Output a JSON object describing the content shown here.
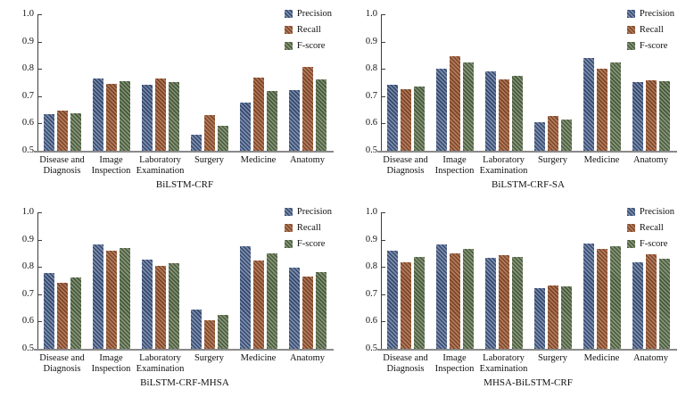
{
  "figure": {
    "background": "#ffffff",
    "text_color": "#111111",
    "axis_color": "#3d3d3d",
    "baseline_color": "#8a8a8a",
    "legend": {
      "position": "top-right",
      "items": [
        {
          "label": "Precision",
          "colors": [
            "#34496f",
            "#7c8cab"
          ]
        },
        {
          "label": "Recall",
          "colors": [
            "#7f4426",
            "#b07c5e"
          ]
        },
        {
          "label": "F-score",
          "colors": [
            "#455a3c",
            "#879377"
          ]
        }
      ]
    }
  },
  "chart_data": [
    {
      "type": "bar",
      "title": "BiLSTM-CRF",
      "categories": [
        "Disease and Diagnosis",
        "Image Inspection",
        "Laboratory Examination",
        "Surgery",
        "Medicine",
        "Anatomy"
      ],
      "series": [
        {
          "name": "Precision",
          "values": [
            0.635,
            0.766,
            0.741,
            0.558,
            0.676,
            0.722
          ]
        },
        {
          "name": "Recall",
          "values": [
            0.648,
            0.746,
            0.764,
            0.632,
            0.768,
            0.808
          ]
        },
        {
          "name": "F-score",
          "values": [
            0.638,
            0.756,
            0.752,
            0.592,
            0.72,
            0.763
          ]
        }
      ],
      "ylim": [
        0.5,
        1.0
      ],
      "yticks": [
        0.5,
        0.6,
        0.7,
        0.8,
        0.9,
        1.0
      ],
      "grid": false,
      "legend_position": "top-right"
    },
    {
      "type": "bar",
      "title": "BiLSTM-CRF-SA",
      "categories": [
        "Disease and Diagnosis",
        "Image Inspection",
        "Laboratory Examination",
        "Surgery",
        "Medicine",
        "Anatomy"
      ],
      "series": [
        {
          "name": "Precision",
          "values": [
            0.742,
            0.8,
            0.791,
            0.604,
            0.84,
            0.752
          ]
        },
        {
          "name": "Recall",
          "values": [
            0.726,
            0.845,
            0.761,
            0.627,
            0.802,
            0.758
          ]
        },
        {
          "name": "F-score",
          "values": [
            0.734,
            0.823,
            0.776,
            0.615,
            0.822,
            0.755
          ]
        }
      ],
      "ylim": [
        0.5,
        1.0
      ],
      "yticks": [
        0.5,
        0.6,
        0.7,
        0.8,
        0.9,
        1.0
      ],
      "grid": false,
      "legend_position": "top-right"
    },
    {
      "type": "bar",
      "title": "BiLSTM-CRF-MHSA",
      "categories": [
        "Disease and Diagnosis",
        "Image Inspection",
        "Laboratory Examination",
        "Surgery",
        "Medicine",
        "Anatomy"
      ],
      "series": [
        {
          "name": "Precision",
          "values": [
            0.778,
            0.881,
            0.826,
            0.644,
            0.875,
            0.796
          ]
        },
        {
          "name": "Recall",
          "values": [
            0.743,
            0.86,
            0.805,
            0.606,
            0.825,
            0.765
          ]
        },
        {
          "name": "F-score",
          "values": [
            0.76,
            0.87,
            0.815,
            0.624,
            0.85,
            0.78
          ]
        }
      ],
      "ylim": [
        0.5,
        1.0
      ],
      "yticks": [
        0.5,
        0.6,
        0.7,
        0.8,
        0.9,
        1.0
      ],
      "grid": false,
      "legend_position": "top-right"
    },
    {
      "type": "bar",
      "title": "MHSA-BiLSTM-CRF",
      "categories": [
        "Disease and Diagnosis",
        "Image Inspection",
        "Laboratory Examination",
        "Surgery",
        "Medicine",
        "Anatomy"
      ],
      "series": [
        {
          "name": "Precision",
          "values": [
            0.86,
            0.883,
            0.832,
            0.722,
            0.885,
            0.816
          ]
        },
        {
          "name": "Recall",
          "values": [
            0.818,
            0.85,
            0.843,
            0.731,
            0.866,
            0.845
          ]
        },
        {
          "name": "F-score",
          "values": [
            0.838,
            0.866,
            0.837,
            0.728,
            0.876,
            0.831
          ]
        }
      ],
      "ylim": [
        0.5,
        1.0
      ],
      "yticks": [
        0.5,
        0.6,
        0.7,
        0.8,
        0.9,
        1.0
      ],
      "grid": false,
      "legend_position": "top-right"
    }
  ]
}
